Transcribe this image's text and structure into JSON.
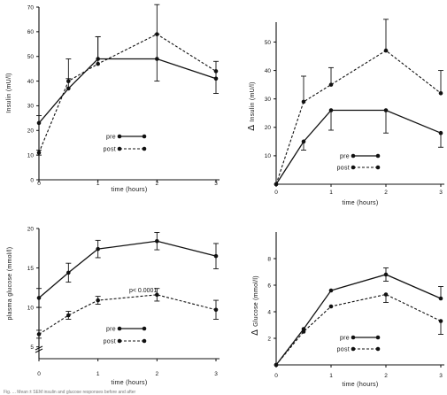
{
  "chart_data": [
    {
      "type": "line",
      "ylabel": "Insulin (mU/l)",
      "xlabel": "time (hours)",
      "ylim": [
        0,
        70
      ],
      "yticks": [
        "0",
        "10",
        "20",
        "30",
        "40",
        "50",
        "60",
        "70"
      ],
      "xlim": [
        0,
        3
      ],
      "xticks": [
        "0",
        "1",
        "2",
        "3"
      ],
      "legend": [
        "pre",
        "post"
      ],
      "legend_position": "lower-right",
      "series": [
        {
          "name": "pre",
          "style": "solid",
          "x": [
            0,
            0.5,
            1,
            2,
            3
          ],
          "y": [
            23,
            37,
            49,
            49,
            41
          ],
          "err_up": [
            3,
            4,
            9,
            10,
            7
          ],
          "err_down": [
            0,
            0,
            0,
            9,
            6
          ]
        },
        {
          "name": "post",
          "style": "dashed",
          "x": [
            0,
            0.5,
            1,
            2,
            3
          ],
          "y": [
            11,
            40,
            47,
            59,
            44
          ],
          "err_up": [
            1,
            9,
            11,
            12,
            0
          ],
          "err_down": [
            1,
            0,
            0,
            0,
            0
          ]
        }
      ]
    },
    {
      "type": "line",
      "ylabel": "Insulin (mU/l)",
      "ylabel_prefix": "Δ",
      "xlabel": "time (hours)",
      "ylim": [
        0,
        57
      ],
      "yticks": [
        "10",
        "20",
        "30",
        "40",
        "50"
      ],
      "xlim": [
        0,
        3
      ],
      "xticks": [
        "0",
        "1",
        "2",
        "3"
      ],
      "legend": [
        "pre",
        "post"
      ],
      "legend_position": "lower-right",
      "series": [
        {
          "name": "pre",
          "style": "solid",
          "x": [
            0,
            0.5,
            1,
            2,
            3
          ],
          "y": [
            0,
            15,
            26,
            26,
            18
          ],
          "err_up": [
            0,
            0,
            0,
            0,
            0
          ],
          "err_down": [
            0,
            3,
            7,
            8,
            5
          ]
        },
        {
          "name": "post",
          "style": "dashed",
          "x": [
            0,
            0.5,
            1,
            2,
            3
          ],
          "y": [
            0,
            29,
            35,
            47,
            32
          ],
          "err_up": [
            0,
            9,
            6,
            11,
            8
          ],
          "err_down": [
            0,
            0,
            0,
            0,
            0
          ]
        }
      ]
    },
    {
      "type": "line",
      "ylabel": "plasma glucose (mmol/l)",
      "xlabel": "time (hours)",
      "ylim": [
        3.5,
        20
      ],
      "yticks": [
        "5",
        "10",
        "15",
        "20"
      ],
      "axis_break": true,
      "xlim": [
        0,
        3
      ],
      "xticks": [
        "0",
        "1",
        "2",
        "3"
      ],
      "annotation": "p< 0.0001",
      "legend": [
        "pre",
        "post"
      ],
      "legend_position": "lower-right",
      "series": [
        {
          "name": "pre",
          "style": "solid",
          "x": [
            0,
            0.5,
            1,
            2,
            3
          ],
          "y": [
            11.2,
            14.4,
            17.4,
            18.4,
            16.5
          ],
          "err_up": [
            1.2,
            1.2,
            1.1,
            1.1,
            1.6
          ],
          "err_down": [
            1.2,
            1.2,
            1.1,
            1.1,
            1.6
          ]
        },
        {
          "name": "post",
          "style": "dashed",
          "x": [
            0,
            0.5,
            1,
            2,
            3
          ],
          "y": [
            6.6,
            9.0,
            10.9,
            11.6,
            9.7
          ],
          "err_up": [
            0.5,
            0.5,
            0.5,
            0.8,
            1.2
          ],
          "err_down": [
            0.5,
            0.5,
            0.5,
            0.8,
            1.2
          ]
        }
      ]
    },
    {
      "type": "line",
      "ylabel": "Glucose (mmol/l)",
      "ylabel_prefix": "Δ",
      "xlabel": "time (hours)",
      "ylim": [
        0,
        10
      ],
      "yticks": [
        "2",
        "4",
        "6",
        "8"
      ],
      "xlim": [
        0,
        3
      ],
      "xticks": [
        "0",
        "1",
        "2",
        "3"
      ],
      "legend": [
        "pre",
        "post"
      ],
      "legend_position": "lower-right",
      "series": [
        {
          "name": "pre",
          "style": "solid",
          "x": [
            0,
            0.5,
            1,
            2,
            3
          ],
          "y": [
            0,
            2.7,
            5.6,
            6.8,
            5.0
          ],
          "err_up": [
            0,
            0,
            0,
            0.5,
            0.9
          ],
          "err_down": [
            0,
            0,
            0,
            0.5,
            0
          ]
        },
        {
          "name": "post",
          "style": "dashed",
          "x": [
            0,
            0.5,
            1,
            2,
            3
          ],
          "y": [
            0,
            2.5,
            4.4,
            5.3,
            3.3
          ],
          "err_up": [
            0,
            0,
            0,
            0,
            0
          ],
          "err_down": [
            0,
            0,
            0,
            0.6,
            1.0
          ]
        }
      ]
    }
  ],
  "caption": "Fig. ... Mean ± SEM insulin and glucose responses before and after"
}
